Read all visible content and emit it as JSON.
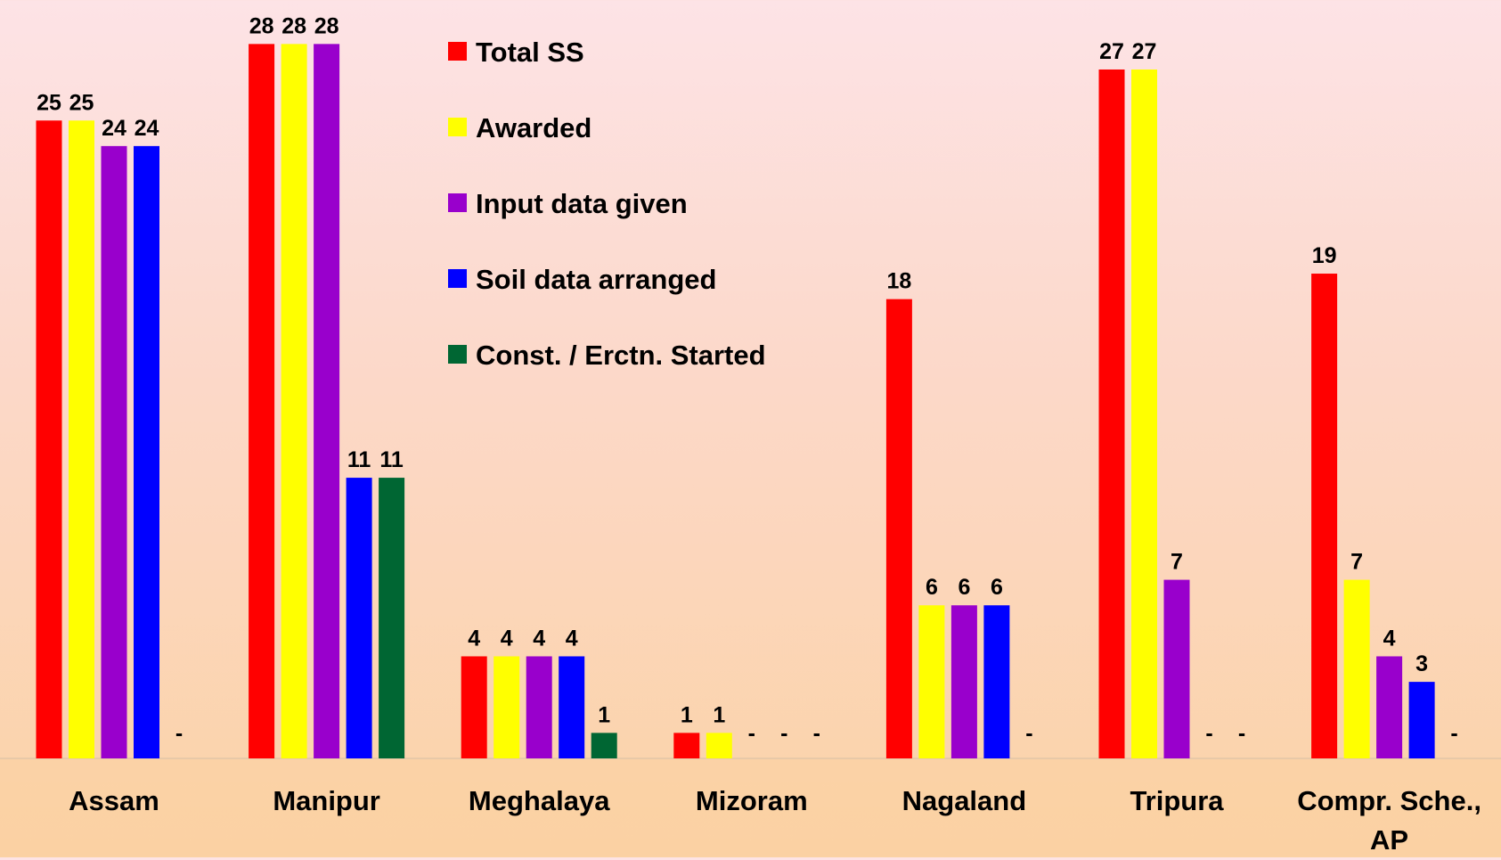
{
  "chart_data": {
    "type": "bar",
    "categories": [
      "Assam",
      "Manipur",
      "Meghalaya",
      "Mizoram",
      "Nagaland",
      "Tripura",
      "Compr. Sche., AP"
    ],
    "series": [
      {
        "name": "Total SS",
        "color": "#ff0000",
        "values": [
          25,
          28,
          4,
          1,
          18,
          27,
          19
        ]
      },
      {
        "name": "Awarded",
        "color": "#ffff00",
        "values": [
          25,
          28,
          4,
          1,
          6,
          27,
          7
        ]
      },
      {
        "name": "Input data given",
        "color": "#9900cc",
        "values": [
          24,
          28,
          4,
          0,
          6,
          7,
          4
        ],
        "value_labels": [
          "24",
          "28",
          "4",
          "-",
          "6",
          "7",
          "4"
        ]
      },
      {
        "name": "Soil data arranged",
        "color": "#0000ff",
        "values": [
          24,
          11,
          4,
          0,
          6,
          0,
          3
        ],
        "value_labels": [
          "24",
          "11",
          "4",
          "-",
          "6",
          "-",
          "3"
        ]
      },
      {
        "name": "Const. / Erctn. Started",
        "color": "#006633",
        "values": [
          0,
          11,
          1,
          0,
          0,
          0,
          0
        ],
        "value_labels": [
          "-",
          "11",
          "1",
          "-",
          "-",
          "-",
          "-"
        ]
      }
    ],
    "legend": "top-center"
  }
}
